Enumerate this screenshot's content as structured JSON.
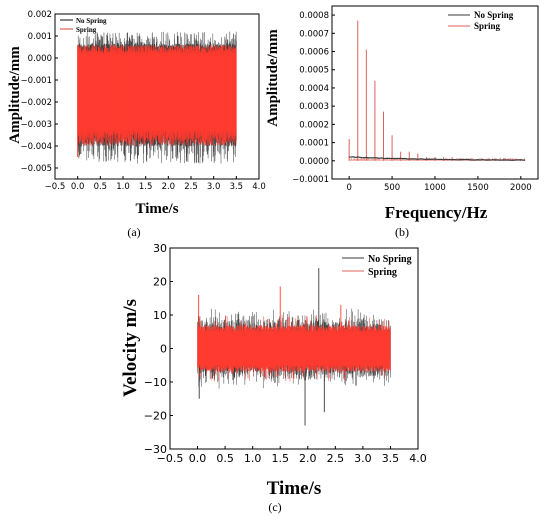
{
  "colors": {
    "no_spring": "#3a3a3a",
    "spring": "#ff3b30",
    "spring_line": "#e0605a",
    "frame": "#000000"
  },
  "chart_data": [
    {
      "id": "a",
      "panel_label": "(a)",
      "type": "line",
      "xlabel": "Time/s",
      "ylabel": "Amplitude/mm",
      "xlim": [
        -0.5,
        4.0
      ],
      "ylim": [
        -0.0055,
        0.002
      ],
      "xticks": [
        "−0.5",
        "0.0",
        "0.5",
        "1.0",
        "1.5",
        "2.0",
        "2.5",
        "3.0",
        "3.5",
        "4.0"
      ],
      "yticks": [
        "0.002",
        "0.001",
        "0.000",
        "−0.001",
        "−0.002",
        "−0.003",
        "−0.004",
        "−0.005"
      ],
      "legend_position": "top-left",
      "series": [
        {
          "name": "No Spring",
          "x_range": [
            0.0,
            3.5
          ],
          "upper_envelope": [
            0.0003,
            0.0012
          ],
          "lower_envelope": [
            -0.0035,
            -0.0048
          ]
        },
        {
          "name": "Spring",
          "x_range": [
            0.0,
            3.5
          ],
          "upper_envelope": [
            0.0002,
            0.0006
          ],
          "lower_envelope": [
            -0.0033,
            -0.004
          ]
        }
      ]
    },
    {
      "id": "b",
      "panel_label": "(b)",
      "type": "line",
      "xlabel": "Frequency/Hz",
      "ylabel": "Amplitude/mm",
      "xlim": [
        -200,
        2200
      ],
      "ylim": [
        -0.0001,
        0.00085
      ],
      "xticks": [
        "0",
        "500",
        "1000",
        "1500",
        "2000"
      ],
      "xtick_values": [
        0,
        500,
        1000,
        1500,
        2000
      ],
      "yticks": [
        "0.0008",
        "0.0007",
        "0.0006",
        "0.0005",
        "0.0004",
        "0.0003",
        "0.0002",
        "0.0001",
        "0.0000",
        "−0.0001"
      ],
      "legend_position": "top-right",
      "series": [
        {
          "name": "No Spring",
          "baseline": 2e-05,
          "x_range": [
            0,
            2050
          ]
        },
        {
          "name": "Spring",
          "peaks": [
            {
              "f": 0,
              "a": 0.00012
            },
            {
              "f": 100,
              "a": 0.00077
            },
            {
              "f": 200,
              "a": 0.00061
            },
            {
              "f": 300,
              "a": 0.00044
            },
            {
              "f": 400,
              "a": 0.00027
            },
            {
              "f": 500,
              "a": 0.00014
            },
            {
              "f": 600,
              "a": 5e-05
            },
            {
              "f": 700,
              "a": 5e-05
            },
            {
              "f": 800,
              "a": 4e-05
            },
            {
              "f": 900,
              "a": 2e-05
            },
            {
              "f": 1000,
              "a": 2e-05
            },
            {
              "f": 1100,
              "a": 2e-05
            },
            {
              "f": 1200,
              "a": 2e-05
            },
            {
              "f": 1300,
              "a": 1e-05
            },
            {
              "f": 1400,
              "a": 1e-05
            },
            {
              "f": 1500,
              "a": 1e-05
            },
            {
              "f": 1600,
              "a": 1e-05
            },
            {
              "f": 1700,
              "a": 1e-05
            },
            {
              "f": 1800,
              "a": 1e-05
            },
            {
              "f": 1900,
              "a": 1e-05
            },
            {
              "f": 2000,
              "a": 1e-05
            }
          ]
        }
      ]
    },
    {
      "id": "c",
      "panel_label": "(c)",
      "type": "line",
      "xlabel": "Time/s",
      "ylabel": "Velocity m/s",
      "xlim": [
        -0.5,
        4.0
      ],
      "ylim": [
        -30,
        30
      ],
      "xticks": [
        "−0.5",
        "0.0",
        "0.5",
        "1.0",
        "1.5",
        "2.0",
        "2.5",
        "3.0",
        "3.5",
        "4.0"
      ],
      "yticks": [
        "30",
        "20",
        "10",
        "0",
        "−10",
        "−20",
        "−30"
      ],
      "legend_position": "top-right",
      "series": [
        {
          "name": "No Spring",
          "x_range": [
            0.0,
            3.5
          ],
          "band": [
            -8,
            8
          ],
          "spikes": [
            {
              "x": 2.2,
              "v": 24
            },
            {
              "x": 1.95,
              "v": -23
            },
            {
              "x": 2.3,
              "v": -19
            },
            {
              "x": 0.03,
              "v": -15
            }
          ]
        },
        {
          "name": "Spring",
          "x_range": [
            0.0,
            3.5
          ],
          "band": [
            -7,
            7
          ],
          "spikes": [
            {
              "x": 0.02,
              "v": 16
            },
            {
              "x": 1.5,
              "v": 18.5
            },
            {
              "x": 2.6,
              "v": 13
            }
          ]
        }
      ]
    }
  ]
}
